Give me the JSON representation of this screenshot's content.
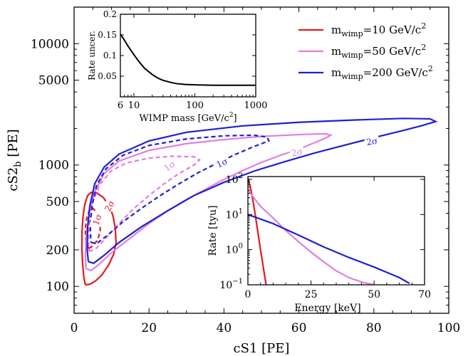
{
  "chart_data": [
    {
      "type": "line",
      "role": "main",
      "xlabel": "cS1 [PE]",
      "ylabel_main": "cS2",
      "ylabel_sub": "b",
      "ylabel_unit": " [PE]",
      "xlim": [
        0,
        100
      ],
      "ylim": [
        60,
        20000
      ],
      "yscale": "log",
      "xticks": [
        0,
        20,
        40,
        60,
        80,
        100
      ],
      "yticks": [
        100,
        200,
        500,
        1000,
        5000,
        10000
      ],
      "legend": {
        "position": "top-right",
        "entries": [
          {
            "prefix": "m",
            "sub": "wimp",
            "text": "=10 GeV/c",
            "sup": "2",
            "color": "#e31a1c"
          },
          {
            "prefix": "m",
            "sub": "wimp",
            "text": "=50 GeV/c",
            "sup": "2",
            "color": "#e07ee0"
          },
          {
            "prefix": "m",
            "sub": "wimp",
            "text": "=200 GeV/c",
            "sup": "2",
            "color": "#1f1fd6"
          }
        ]
      },
      "series": [
        {
          "name": "m_wimp=10 GeV/c^2",
          "color": "#e31a1c",
          "sigma": "2σ",
          "dashed": false,
          "label_at": [
            9.5,
            460
          ],
          "label_angle": -60,
          "points": [
            [
              3.0,
              103
            ],
            [
              4.2,
              104
            ],
            [
              5.6,
              110
            ],
            [
              7.5,
              125
            ],
            [
              9.2,
              150
            ],
            [
              10.6,
              185
            ],
            [
              11.2,
              230
            ],
            [
              11.0,
              300
            ],
            [
              10.4,
              380
            ],
            [
              9.4,
              460
            ],
            [
              7.8,
              540
            ],
            [
              6.0,
              590
            ],
            [
              4.6,
              595
            ],
            [
              3.6,
              560
            ],
            [
              2.9,
              480
            ],
            [
              2.4,
              380
            ],
            [
              2.1,
              280
            ],
            [
              2.1,
              200
            ],
            [
              2.3,
              150
            ],
            [
              2.6,
              120
            ],
            [
              3.0,
              103
            ]
          ]
        },
        {
          "name": "m_wimp=10 GeV/c^2",
          "color": "#e31a1c",
          "sigma": "1σ",
          "dashed": true,
          "label_at": [
            6.2,
            355
          ],
          "label_angle": -70,
          "points": [
            [
              4.0,
              205
            ],
            [
              5.2,
              218
            ],
            [
              6.4,
              245
            ],
            [
              7.0,
              290
            ],
            [
              6.8,
              345
            ],
            [
              6.0,
              405
            ],
            [
              5.0,
              440
            ],
            [
              4.1,
              425
            ],
            [
              3.4,
              370
            ],
            [
              3.0,
              300
            ],
            [
              3.1,
              245
            ],
            [
              3.5,
              215
            ],
            [
              4.0,
              205
            ]
          ]
        },
        {
          "name": "m_wimp=50 GeV/c^2",
          "color": "#e07ee0",
          "sigma": "2σ",
          "dashed": false,
          "label_at": [
            59.5,
            1270
          ],
          "label_angle": -12,
          "points": [
            [
              3.2,
              140
            ],
            [
              4.5,
              135
            ],
            [
              6.5,
              150
            ],
            [
              10,
              190
            ],
            [
              15,
              250
            ],
            [
              20,
              330
            ],
            [
              25,
              420
            ],
            [
              30,
              520
            ],
            [
              35,
              630
            ],
            [
              40,
              760
            ],
            [
              45,
              900
            ],
            [
              50,
              1050
            ],
            [
              55,
              1200
            ],
            [
              60,
              1350
            ],
            [
              64,
              1520
            ],
            [
              67,
              1660
            ],
            [
              68.5,
              1760
            ],
            [
              67,
              1810
            ],
            [
              60,
              1780
            ],
            [
              50,
              1720
            ],
            [
              40,
              1620
            ],
            [
              30,
              1500
            ],
            [
              20,
              1320
            ],
            [
              12,
              1080
            ],
            [
              8,
              850
            ],
            [
              5.5,
              600
            ],
            [
              4,
              400
            ],
            [
              3.2,
              250
            ],
            [
              3.0,
              180
            ],
            [
              3.2,
              140
            ]
          ]
        },
        {
          "name": "m_wimp=50 GeV/c^2",
          "color": "#e07ee0",
          "sigma": "1σ",
          "dashed": true,
          "label_at": [
            25.5,
            980
          ],
          "label_angle": -35,
          "points": [
            [
              4.0,
              195
            ],
            [
              5.5,
              200
            ],
            [
              8,
              240
            ],
            [
              12,
              330
            ],
            [
              16,
              440
            ],
            [
              20,
              560
            ],
            [
              24,
              700
            ],
            [
              28,
              850
            ],
            [
              32,
              1000
            ],
            [
              33.5,
              1100
            ],
            [
              32,
              1170
            ],
            [
              26,
              1180
            ],
            [
              20,
              1140
            ],
            [
              14,
              1040
            ],
            [
              10,
              900
            ],
            [
              7,
              700
            ],
            [
              5,
              500
            ],
            [
              4.1,
              330
            ],
            [
              3.8,
              240
            ],
            [
              4.0,
              195
            ]
          ]
        },
        {
          "name": "m_wimp=200 GeV/c^2",
          "color": "#1f1fd6",
          "sigma": "2σ",
          "dashed": false,
          "label_at": [
            79.5,
            1560
          ],
          "label_angle": -10,
          "points": [
            [
              3.8,
              160
            ],
            [
              5.2,
              155
            ],
            [
              8,
              180
            ],
            [
              12,
              230
            ],
            [
              18,
              310
            ],
            [
              25,
              420
            ],
            [
              32,
              560
            ],
            [
              40,
              720
            ],
            [
              48,
              890
            ],
            [
              56,
              1060
            ],
            [
              64,
              1250
            ],
            [
              72,
              1450
            ],
            [
              80,
              1680
            ],
            [
              88,
              1930
            ],
            [
              93,
              2120
            ],
            [
              96.5,
              2280
            ],
            [
              95,
              2400
            ],
            [
              88,
              2420
            ],
            [
              75,
              2350
            ],
            [
              60,
              2250
            ],
            [
              45,
              2100
            ],
            [
              30,
              1860
            ],
            [
              20,
              1580
            ],
            [
              12,
              1230
            ],
            [
              8,
              960
            ],
            [
              5.5,
              700
            ],
            [
              4.2,
              460
            ],
            [
              3.6,
              300
            ],
            [
              3.5,
              200
            ],
            [
              3.8,
              160
            ]
          ]
        },
        {
          "name": "m_wimp=200 GeV/c^2",
          "color": "#1f1fd6",
          "sigma": "1σ",
          "dashed": true,
          "label_at": [
            39.5,
            1040
          ],
          "label_angle": -25,
          "points": [
            [
              4.5,
              230
            ],
            [
              6,
              225
            ],
            [
              9,
              265
            ],
            [
              13,
              340
            ],
            [
              18,
              440
            ],
            [
              23,
              560
            ],
            [
              28,
              700
            ],
            [
              33,
              860
            ],
            [
              38,
              1030
            ],
            [
              43,
              1220
            ],
            [
              48,
              1420
            ],
            [
              52,
              1580
            ],
            [
              51.5,
              1700
            ],
            [
              48,
              1760
            ],
            [
              40,
              1740
            ],
            [
              30,
              1640
            ],
            [
              20,
              1450
            ],
            [
              13,
              1200
            ],
            [
              8.5,
              930
            ],
            [
              6,
              680
            ],
            [
              4.8,
              460
            ],
            [
              4.3,
              320
            ],
            [
              4.5,
              230
            ]
          ]
        }
      ]
    },
    {
      "type": "line",
      "role": "inset-top",
      "xlabel": "WIMP mass [GeV/c",
      "xlabel_sup": "2",
      "xlabel_end": "]",
      "ylabel": "Rate uncer.",
      "xscale": "log",
      "xlim": [
        6,
        1000
      ],
      "ylim": [
        0.0,
        0.2
      ],
      "xticks": [
        6,
        10,
        100,
        1000
      ],
      "yticks": [
        0.05,
        0.1,
        0.15,
        0.2
      ],
      "series": [
        {
          "color": "#000000",
          "points": [
            [
              6,
              0.152
            ],
            [
              7,
              0.137
            ],
            [
              8,
              0.123
            ],
            [
              10,
              0.102
            ],
            [
              12,
              0.086
            ],
            [
              15,
              0.069
            ],
            [
              20,
              0.054
            ],
            [
              25,
              0.045
            ],
            [
              30,
              0.04
            ],
            [
              40,
              0.035
            ],
            [
              50,
              0.032
            ],
            [
              70,
              0.03
            ],
            [
              100,
              0.029
            ],
            [
              200,
              0.028
            ],
            [
              500,
              0.028
            ],
            [
              1000,
              0.028
            ]
          ]
        }
      ]
    },
    {
      "type": "line",
      "role": "inset-bottom",
      "xlabel": "Energy [keV]",
      "ylabel": "Rate [tyu]",
      "yscale": "log",
      "xlim": [
        0,
        70
      ],
      "ylim": [
        0.1,
        120
      ],
      "xticks": [
        0,
        25,
        50,
        70
      ],
      "yticks": [
        0.1,
        1,
        10,
        100
      ],
      "ytick_labels": [
        {
          "base": "10",
          "exp": "−1"
        },
        {
          "base": "10",
          "exp": "0"
        },
        {
          "base": "10",
          "exp": "1"
        },
        {
          "base": "10",
          "exp": "2"
        }
      ],
      "series": [
        {
          "name": "m_wimp=10 GeV/c^2",
          "color": "#e31a1c",
          "points": [
            [
              0,
              110
            ],
            [
              1,
              60
            ],
            [
              2,
              25
            ],
            [
              3,
              9
            ],
            [
              4,
              3
            ],
            [
              5,
              1
            ],
            [
              6,
              0.35
            ],
            [
              7.2,
              0.1
            ]
          ]
        },
        {
          "name": "m_wimp=50 GeV/c^2",
          "color": "#e07ee0",
          "points": [
            [
              0,
              50
            ],
            [
              5,
              17
            ],
            [
              10,
              8
            ],
            [
              15,
              3.5
            ],
            [
              20,
              1.7
            ],
            [
              25,
              0.85
            ],
            [
              30,
              0.45
            ],
            [
              35,
              0.25
            ],
            [
              40,
              0.16
            ],
            [
              45,
              0.12
            ],
            [
              50,
              0.1
            ]
          ]
        },
        {
          "name": "m_wimp=200 GeV/c^2",
          "color": "#1f1fd6",
          "points": [
            [
              0,
              10
            ],
            [
              10,
              5.5
            ],
            [
              20,
              2.6
            ],
            [
              30,
              1.2
            ],
            [
              40,
              0.6
            ],
            [
              50,
              0.32
            ],
            [
              60,
              0.16
            ],
            [
              64,
              0.11
            ]
          ]
        }
      ]
    }
  ]
}
